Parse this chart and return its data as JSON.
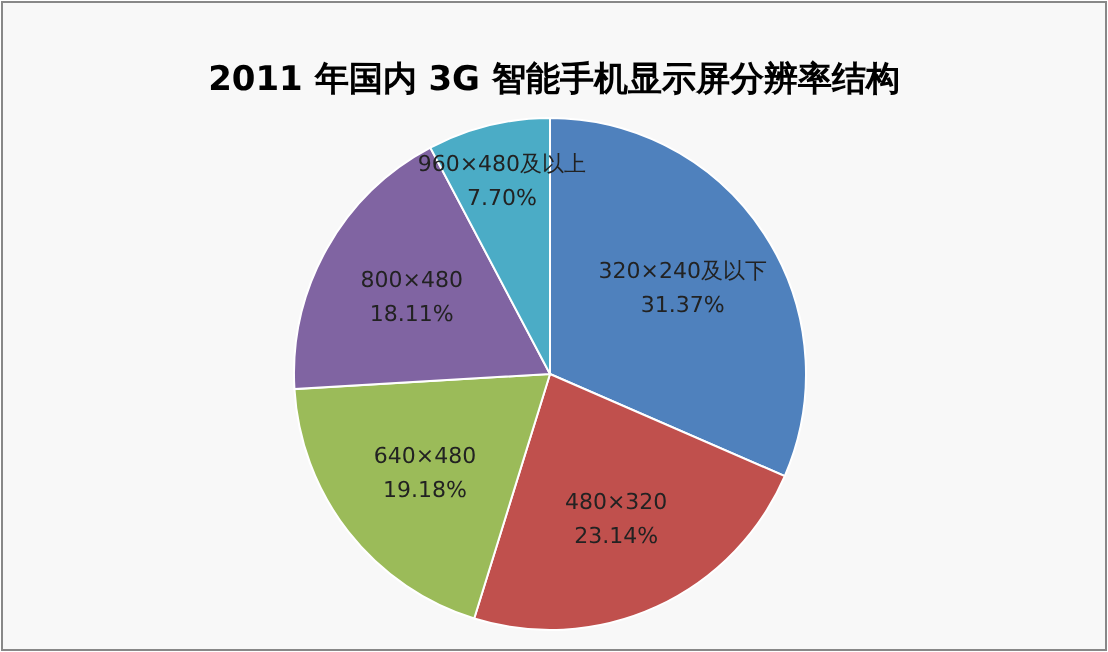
{
  "chart_data": {
    "type": "pie",
    "title": "2011 年国内 3G 智能手机显示屏分辨率结构",
    "categories": [
      "320×240及以下",
      "480×320",
      "640×480",
      "800×480",
      "960×480及以上"
    ],
    "values": [
      31.37,
      23.14,
      19.18,
      18.11,
      7.7
    ],
    "value_labels": [
      "31.37%",
      "23.14%",
      "19.18%",
      "18.11%",
      "7.70%"
    ],
    "colors": [
      "#4f81bd",
      "#c0504d",
      "#9bbb59",
      "#8064a2",
      "#4bacc6"
    ]
  }
}
